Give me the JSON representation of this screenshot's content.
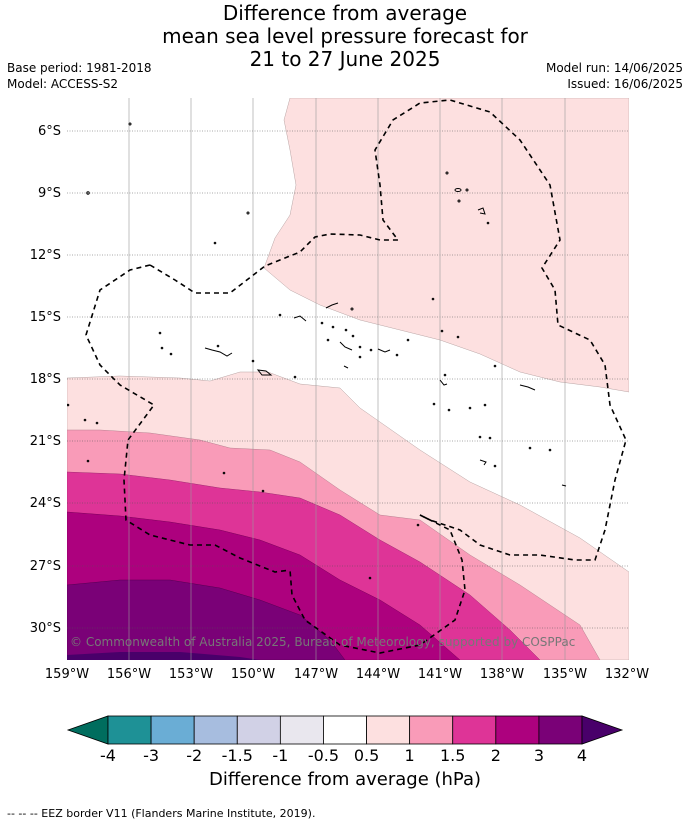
{
  "title": {
    "line1": "Difference from average",
    "line2": "mean sea level pressure forecast for",
    "line3": "21 to 27 June 2025"
  },
  "meta": {
    "base_period": "Base period: 1981-2018",
    "model": "Model: ACCESS-S2",
    "model_run": "Model run: 14/06/2025",
    "issued": "Issued: 16/06/2025"
  },
  "map": {
    "copyright": "© Commonwealth of Australia 2025, Bureau of Meteorology, supported by COSPPac",
    "lat_labels": [
      "6°S",
      "9°S",
      "12°S",
      "15°S",
      "18°S",
      "21°S",
      "24°S",
      "27°S",
      "30°S"
    ],
    "lon_labels": [
      "159°W",
      "156°W",
      "153°W",
      "150°W",
      "147°W",
      "144°W",
      "141°W",
      "138°W",
      "135°W",
      "132°W"
    ]
  },
  "colorbar": {
    "title": "Difference from average (hPa)",
    "tick_labels": [
      "-4",
      "-3",
      "-2",
      "-1.5",
      "-1",
      "-0.5",
      "0.5",
      "1",
      "1.5",
      "2",
      "3",
      "4"
    ],
    "colors": [
      "#1e9196",
      "#6aadd5",
      "#a7bddf",
      "#d1d1e6",
      "#e9e7ee",
      "#ffffff",
      "#fde0e0",
      "#f99bb8",
      "#de3497",
      "#ad017e",
      "#7a0177"
    ],
    "under_color": "#006d5e",
    "over_color": "#49006a"
  },
  "footer": "--  --  -- EEZ border V11 (Flanders Marine Institute, 2019)."
}
